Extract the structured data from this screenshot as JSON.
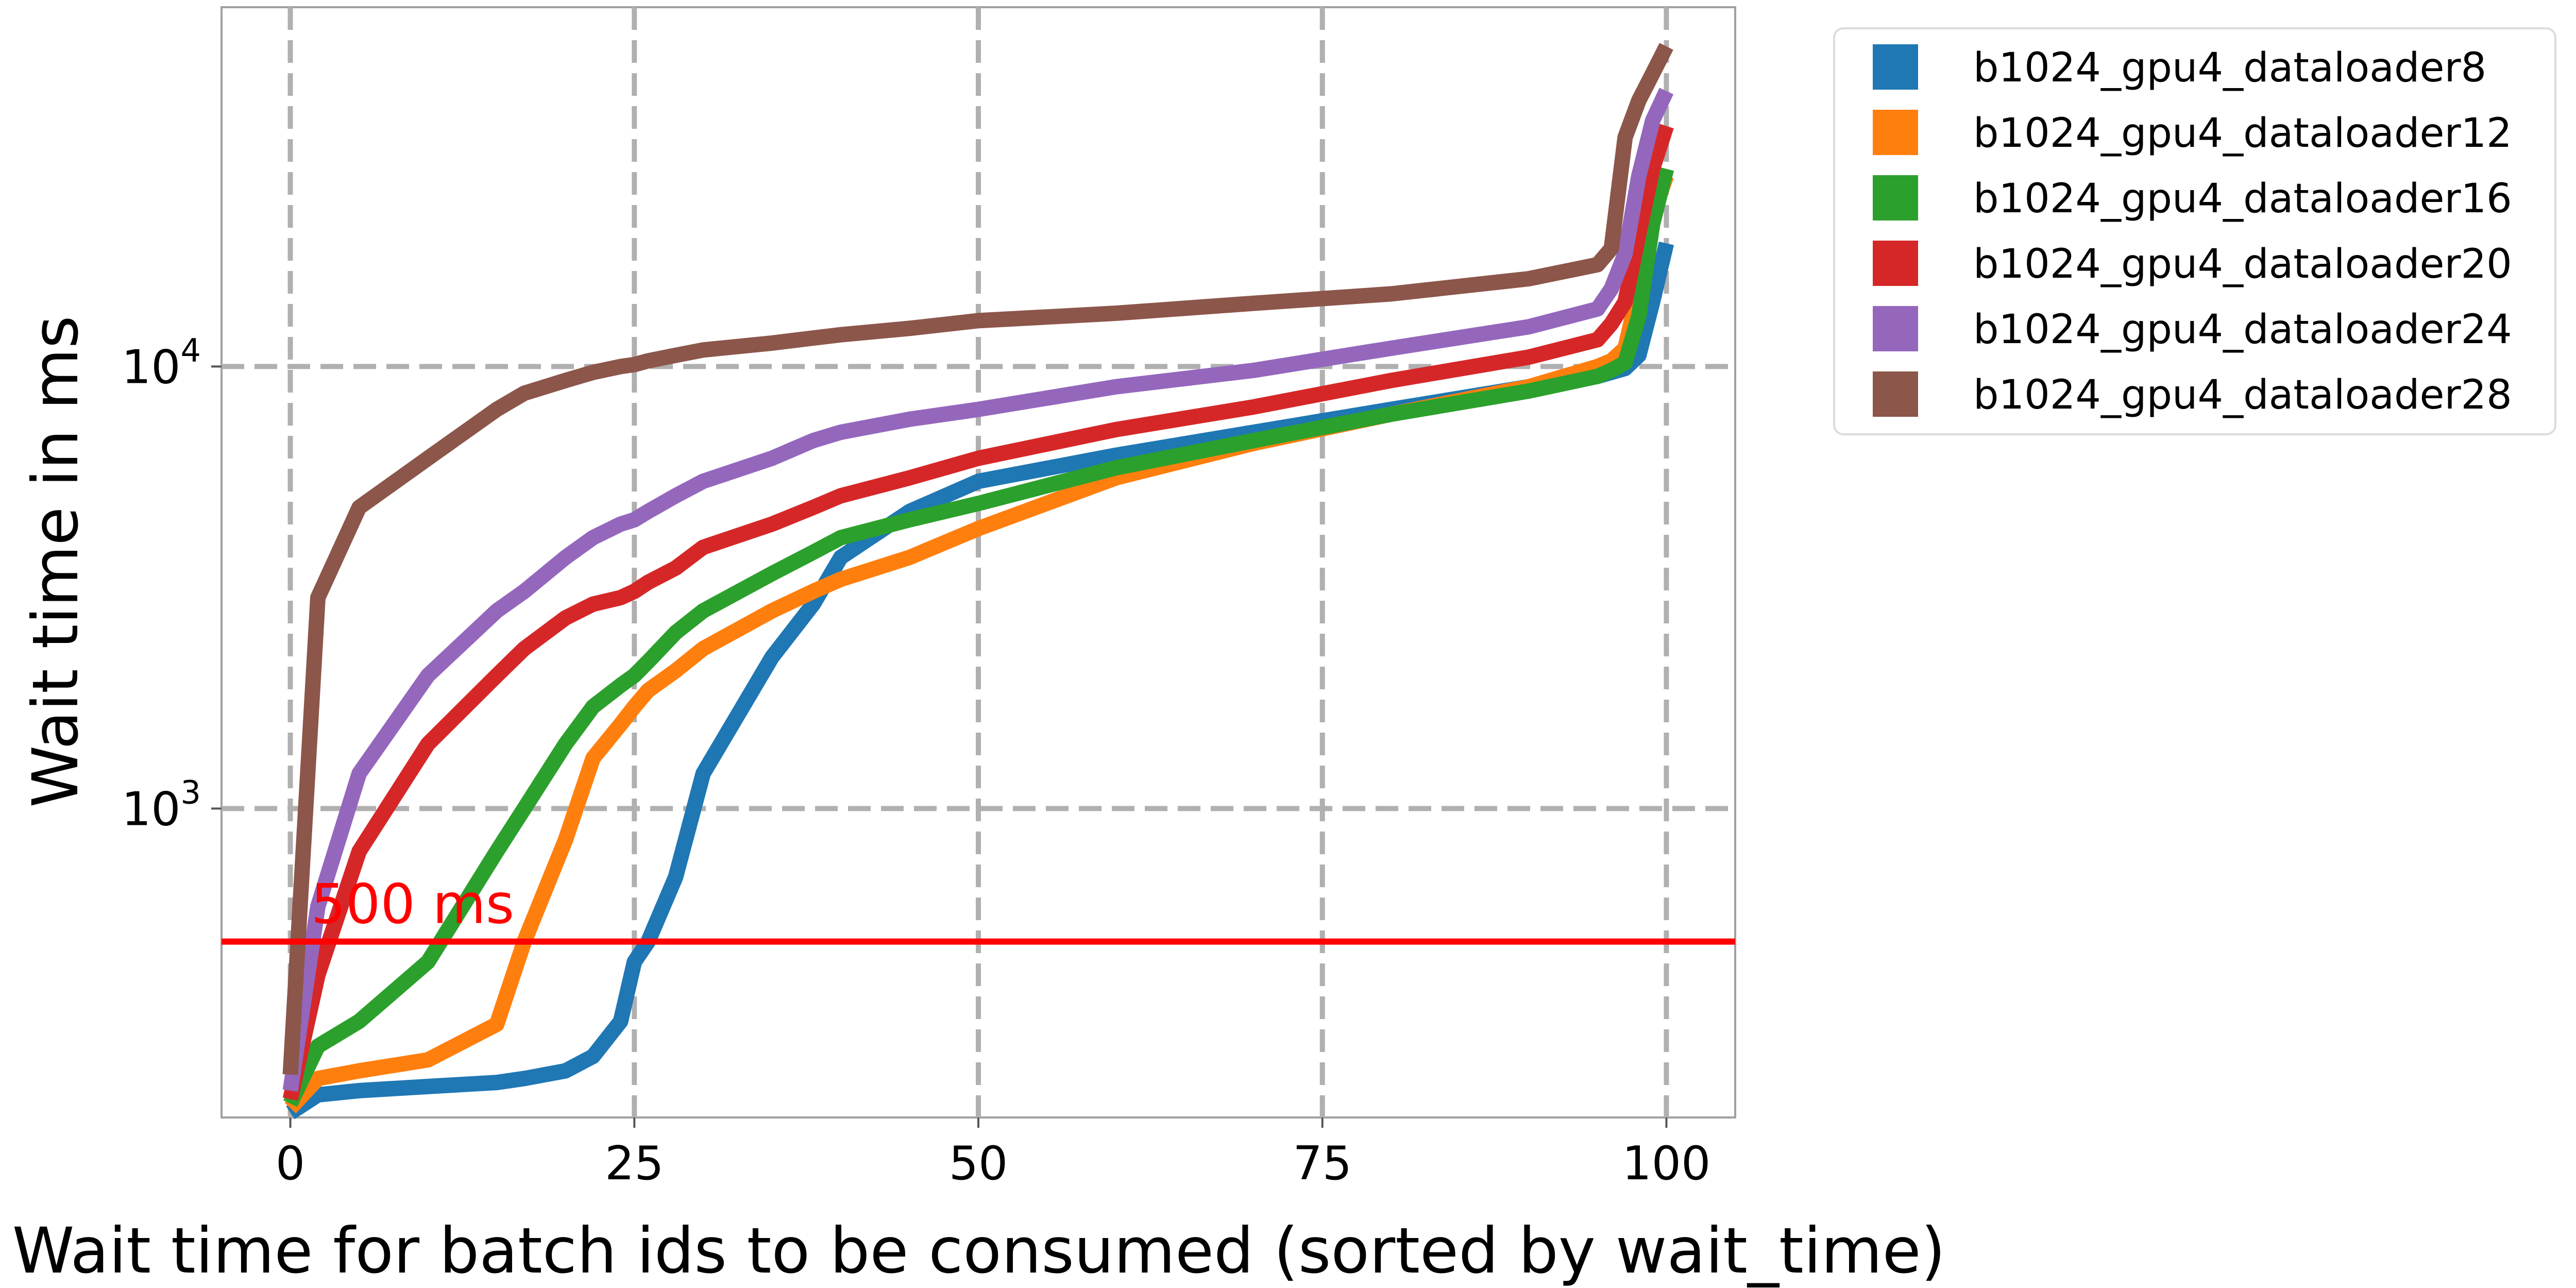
{
  "chart_data": {
    "type": "line",
    "title": "",
    "xlabel": "Wait time for batch ids to be consumed (sorted by wait_time)",
    "ylabel": "Wait time in ms",
    "xlim": [
      -5,
      105
    ],
    "ylim": [
      200,
      65000
    ],
    "yscale": "log",
    "xticks": [
      0,
      25,
      50,
      75,
      100
    ],
    "yticks": [
      1000,
      10000
    ],
    "ytick_labels": [
      {
        "base": "10",
        "exp": "3"
      },
      {
        "base": "10",
        "exp": "4"
      }
    ],
    "grid": true,
    "legend_position": "outside-top-right",
    "annotation": {
      "text": "500 ms",
      "value": 500,
      "color": "#ff0000"
    },
    "x": [
      0,
      2,
      5,
      10,
      15,
      17,
      20,
      22,
      24,
      25,
      26,
      28,
      30,
      35,
      38,
      40,
      45,
      50,
      60,
      70,
      80,
      90,
      95,
      96,
      97,
      98,
      99,
      100
    ],
    "series": [
      {
        "name": "b1024_gpu4_dataloader8",
        "color": "#1f77b4",
        "values": [
          205,
          225,
          230,
          235,
          240,
          245,
          255,
          275,
          330,
          450,
          500,
          700,
          1200,
          2200,
          2900,
          3700,
          4700,
          5500,
          6300,
          7100,
          8000,
          9000,
          9500,
          9700,
          9900,
          10600,
          14000,
          19000
        ]
      },
      {
        "name": "b1024_gpu4_dataloader12",
        "color": "#ff7f0e",
        "values": [
          210,
          245,
          255,
          270,
          325,
          500,
          850,
          1300,
          1550,
          1700,
          1850,
          2050,
          2300,
          2800,
          3100,
          3300,
          3700,
          4300,
          5600,
          6700,
          7800,
          9000,
          10000,
          10300,
          11000,
          15000,
          22000,
          27000
        ]
      },
      {
        "name": "b1024_gpu4_dataloader16",
        "color": "#2ca02c",
        "values": [
          215,
          290,
          330,
          450,
          800,
          1000,
          1400,
          1700,
          1900,
          2000,
          2150,
          2500,
          2800,
          3400,
          3800,
          4100,
          4500,
          4900,
          5900,
          6800,
          7800,
          8800,
          9500,
          9800,
          10200,
          13000,
          21000,
          28000
        ]
      },
      {
        "name": "b1024_gpu4_dataloader20",
        "color": "#d62728",
        "values": [
          220,
          420,
          800,
          1400,
          2000,
          2300,
          2700,
          2900,
          3000,
          3100,
          3250,
          3500,
          3900,
          4400,
          4800,
          5100,
          5600,
          6200,
          7200,
          8100,
          9300,
          10500,
          11500,
          12500,
          14000,
          20000,
          28000,
          35000
        ]
      },
      {
        "name": "b1024_gpu4_dataloader24",
        "color": "#9467bd",
        "values": [
          230,
          600,
          1200,
          2000,
          2800,
          3100,
          3700,
          4100,
          4400,
          4500,
          4700,
          5100,
          5500,
          6200,
          6800,
          7100,
          7600,
          8000,
          9000,
          9800,
          11000,
          12300,
          13500,
          15000,
          18000,
          27000,
          36000,
          42000
        ]
      },
      {
        "name": "b1024_gpu4_dataloader28",
        "color": "#8c564b",
        "values": [
          250,
          3000,
          4800,
          6200,
          8000,
          8700,
          9300,
          9700,
          10000,
          10100,
          10300,
          10600,
          10900,
          11300,
          11600,
          11800,
          12200,
          12700,
          13200,
          13900,
          14600,
          15800,
          17000,
          18500,
          33000,
          40000,
          46000,
          53000
        ]
      }
    ]
  }
}
